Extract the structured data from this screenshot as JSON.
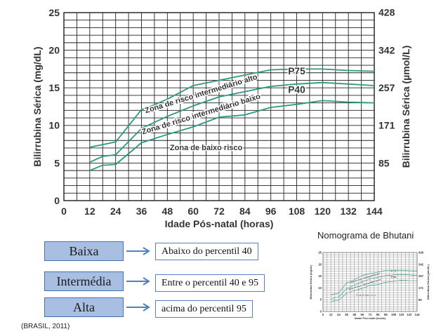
{
  "chart_data": {
    "type": "line",
    "title": "",
    "xlabel": "Idade Pós-natal (horas)",
    "ylabel": "Bilirrubina Sérica (mg/dL)",
    "y2label": "Bilirrubina Sérica (µmol/L)",
    "xlim": [
      0,
      144
    ],
    "ylim": [
      0,
      25
    ],
    "x_ticks": [
      "0",
      "12",
      "24",
      "36",
      "48",
      "60",
      "72",
      "84",
      "96",
      "108",
      "120",
      "132",
      "144"
    ],
    "y_ticks": [
      "0",
      "5",
      "10",
      "15",
      "20",
      "25"
    ],
    "y2_ticks": [
      {
        "value": 85,
        "label": "85"
      },
      {
        "value": 171,
        "label": "171"
      },
      {
        "value": 257,
        "label": "257"
      },
      {
        "value": 342,
        "label": "342"
      },
      {
        "value": 428,
        "label": "428"
      }
    ],
    "series": [
      {
        "name": "P95",
        "x": [
          12,
          24,
          36,
          40,
          48,
          60,
          72,
          84,
          96,
          108,
          120,
          132,
          144
        ],
        "values": [
          7.1,
          7.8,
          12.1,
          12.5,
          13.5,
          15.3,
          16.0,
          16.7,
          17.4,
          17.5,
          17.5,
          17.3,
          17.2
        ]
      },
      {
        "name": "P75",
        "x": [
          12,
          18,
          24,
          36,
          48,
          60,
          72,
          84,
          96,
          108,
          120,
          132,
          144
        ],
        "values": [
          5.1,
          5.9,
          6.1,
          9.6,
          11.2,
          12.6,
          13.8,
          14.5,
          15.2,
          15.5,
          15.7,
          15.5,
          15.3
        ]
      },
      {
        "name": "P40",
        "x": [
          12,
          18,
          24,
          36,
          48,
          60,
          72,
          84,
          96,
          108,
          120,
          132,
          144
        ],
        "values": [
          4.0,
          4.7,
          4.8,
          7.7,
          8.8,
          9.8,
          11.1,
          11.4,
          12.4,
          12.8,
          13.3,
          13.1,
          13.0
        ]
      }
    ],
    "annotations": [
      {
        "id": "p75",
        "text": "P75"
      },
      {
        "id": "p40",
        "text": "P40"
      },
      {
        "id": "alto",
        "text": "Zona de risco intermediário alto"
      },
      {
        "id": "baixo",
        "text": "Zona de risco intermediário baixo"
      },
      {
        "id": "low",
        "text": "Zona de baixo risco"
      }
    ]
  },
  "thumbnail_title": "Nomograma de Bhutani",
  "legend_rows": [
    {
      "label": "Baixa",
      "description": "Abaixo do percentil 40"
    },
    {
      "label": "Intermédia",
      "description": "Entre o percentil 40 e 95"
    },
    {
      "label": "Alta",
      "description": "acima do percentil 95"
    }
  ],
  "source": "(BRASIL, 2011)",
  "colors": {
    "curve": "#2a9a80",
    "grid": "#222222",
    "box_fill": "#a9bfe2",
    "box_border": "#4a6fb0",
    "arrow": "#4f81bd"
  }
}
